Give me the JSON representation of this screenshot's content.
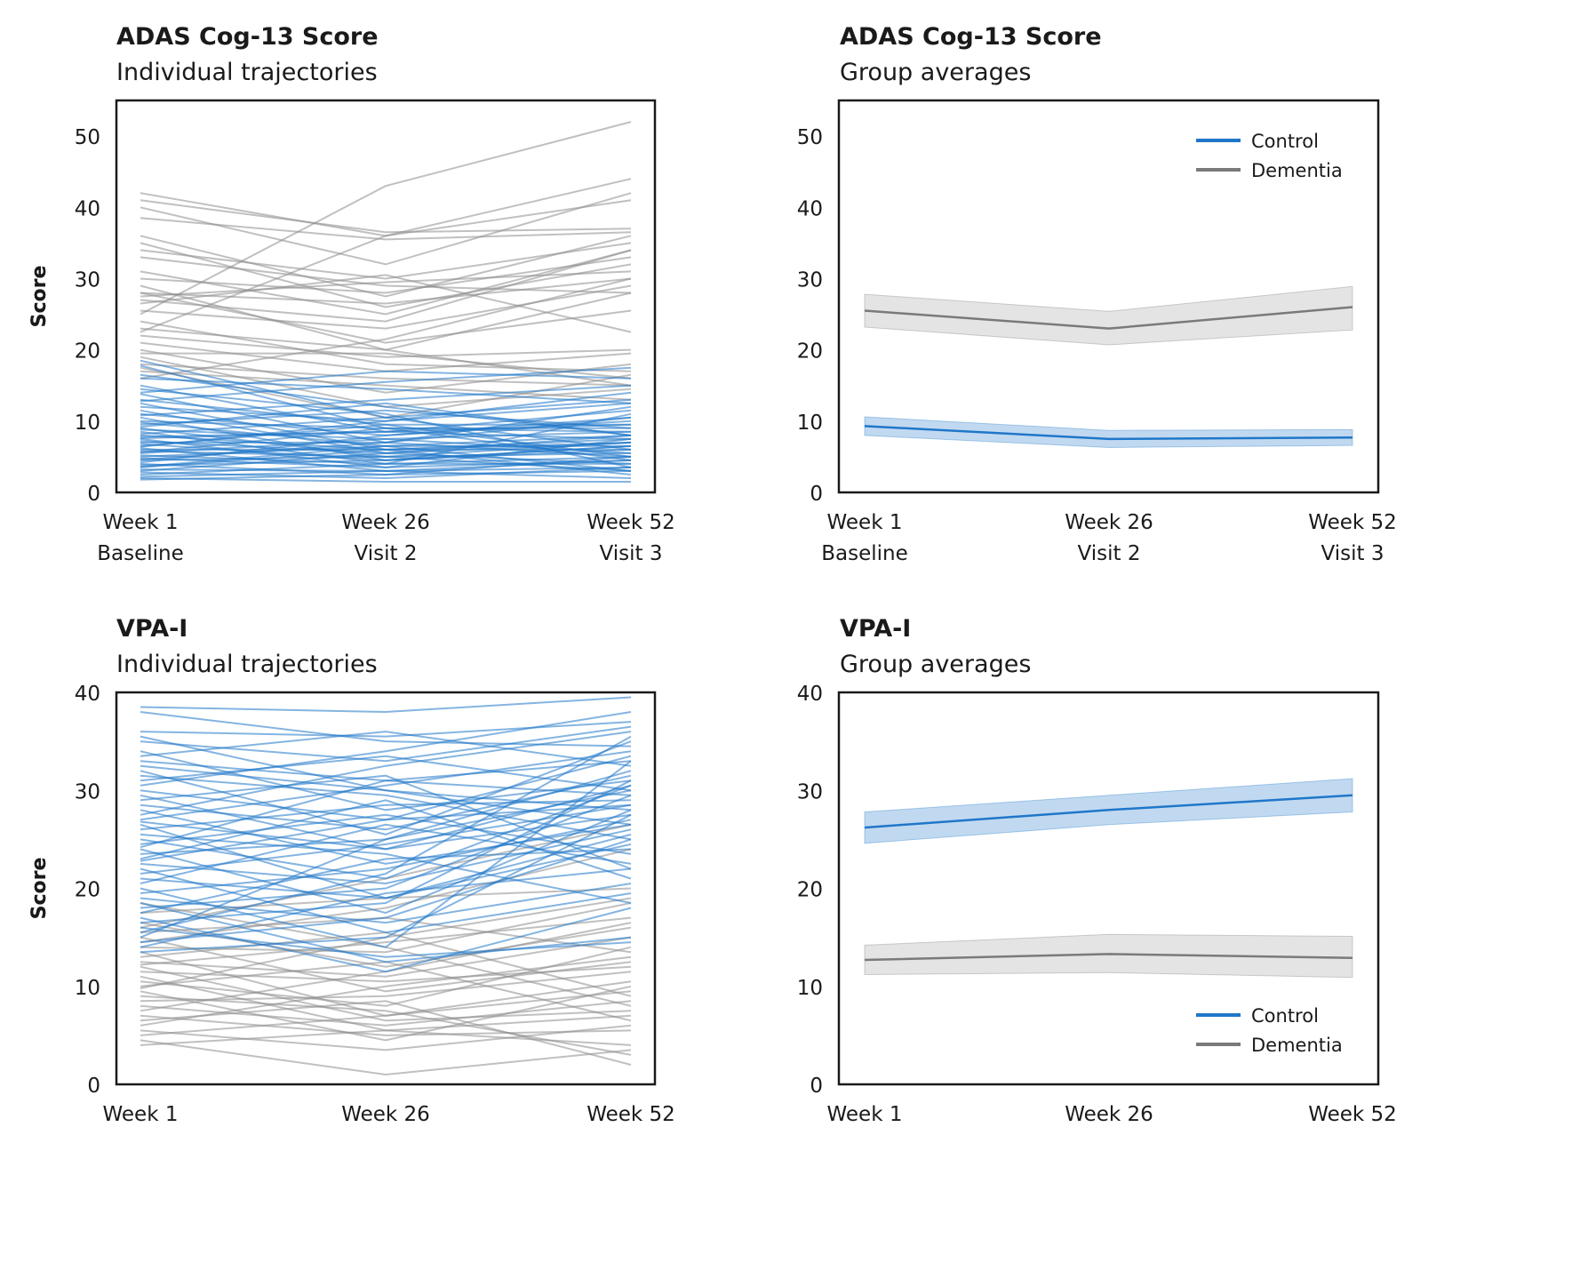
{
  "chart_data": [
    {
      "type": "line",
      "title": "ADAS Cog-13 Score",
      "subtitle": "Individual trajectories",
      "ylabel": "Score",
      "ylim": [
        0,
        55
      ],
      "yticks": [
        0,
        10,
        20,
        30,
        40,
        50
      ],
      "categories": [
        "Week 1",
        "Week 26",
        "Week 52"
      ],
      "category_sublabels": [
        "Baseline",
        "Visit 2",
        "Visit 3"
      ],
      "legend": null,
      "colors": {
        "Control": "#1f77c9",
        "Dementia": "#8c8c8c"
      },
      "groups": [
        {
          "group": "Control",
          "trajectories": [
            [
              18.5,
              10.5,
              6.0
            ],
            [
              17.8,
              9.0,
              4.5
            ],
            [
              16.5,
              12.0,
              8.0
            ],
            [
              15.0,
              8.5,
              9.5
            ],
            [
              14.5,
              11.0,
              3.5
            ],
            [
              13.8,
              7.0,
              12.0
            ],
            [
              13.0,
              9.5,
              5.0
            ],
            [
              12.5,
              6.0,
              7.5
            ],
            [
              12.0,
              10.0,
              14.0
            ],
            [
              11.5,
              5.5,
              4.0
            ],
            [
              11.0,
              8.0,
              10.5
            ],
            [
              10.5,
              4.5,
              6.5
            ],
            [
              10.0,
              9.0,
              8.5
            ],
            [
              9.8,
              6.5,
              3.0
            ],
            [
              9.5,
              11.5,
              9.0
            ],
            [
              9.0,
              5.0,
              7.0
            ],
            [
              8.8,
              7.5,
              5.5
            ],
            [
              8.5,
              4.0,
              11.0
            ],
            [
              8.0,
              6.0,
              6.0
            ],
            [
              7.8,
              8.5,
              7.5
            ],
            [
              7.5,
              3.5,
              4.5
            ],
            [
              7.2,
              5.5,
              8.0
            ],
            [
              7.0,
              7.0,
              5.0
            ],
            [
              6.8,
              4.5,
              6.5
            ],
            [
              6.5,
              9.5,
              9.5
            ],
            [
              6.2,
              3.0,
              3.5
            ],
            [
              6.0,
              6.0,
              7.0
            ],
            [
              5.8,
              5.0,
              5.5
            ],
            [
              5.5,
              7.5,
              8.5
            ],
            [
              5.2,
              4.0,
              4.0
            ],
            [
              5.0,
              6.5,
              6.5
            ],
            [
              4.8,
              3.5,
              7.5
            ],
            [
              4.5,
              5.0,
              3.0
            ],
            [
              4.2,
              8.0,
              10.0
            ],
            [
              4.0,
              2.5,
              5.0
            ],
            [
              3.8,
              4.5,
              6.0
            ],
            [
              3.5,
              6.0,
              2.5
            ],
            [
              3.2,
              3.0,
              4.5
            ],
            [
              3.0,
              5.5,
              7.0
            ],
            [
              2.8,
              2.0,
              3.5
            ],
            [
              2.5,
              4.0,
              5.0
            ],
            [
              2.2,
              3.0,
              2.0
            ],
            [
              2.0,
              1.5,
              1.5
            ],
            [
              1.8,
              2.5,
              3.0
            ],
            [
              14.0,
              17.0,
              16.0
            ],
            [
              16.0,
              14.5,
              12.5
            ],
            [
              12.8,
              15.5,
              17.5
            ],
            [
              10.8,
              13.0,
              15.0
            ],
            [
              9.2,
              12.5,
              8.0
            ],
            [
              8.2,
              10.5,
              13.0
            ],
            [
              7.6,
              8.5,
              11.5
            ],
            [
              6.4,
              10.0,
              12.5
            ],
            [
              5.6,
              9.0,
              9.0
            ],
            [
              4.6,
              7.0,
              10.5
            ],
            [
              3.6,
              6.5,
              8.0
            ]
          ]
        },
        {
          "group": "Dementia",
          "trajectories": [
            [
              42.0,
              36.0,
              44.0
            ],
            [
              41.0,
              36.5,
              37.0
            ],
            [
              40.0,
              32.0,
              42.0
            ],
            [
              36.0,
              27.5,
              36.0
            ],
            [
              35.0,
              26.0,
              32.0
            ],
            [
              34.0,
              30.0,
              35.0
            ],
            [
              31.0,
              25.0,
              34.0
            ],
            [
              30.0,
              28.0,
              33.0
            ],
            [
              29.0,
              20.0,
              28.0
            ],
            [
              28.0,
              26.5,
              30.0
            ],
            [
              28.0,
              21.0,
              25.5
            ],
            [
              27.5,
              29.5,
              31.0
            ],
            [
              26.5,
              30.5,
              22.5
            ],
            [
              25.5,
              23.0,
              29.0
            ],
            [
              25.0,
              43.0,
              52.0
            ],
            [
              24.0,
              18.0,
              17.0
            ],
            [
              23.0,
              20.0,
              15.0
            ],
            [
              22.0,
              19.0,
              20.0
            ],
            [
              21.0,
              17.0,
              19.5
            ],
            [
              20.0,
              14.0,
              18.0
            ],
            [
              19.5,
              19.5,
              16.0
            ],
            [
              19.0,
              12.0,
              14.5
            ],
            [
              18.0,
              16.0,
              15.0
            ],
            [
              17.5,
              10.5,
              16.5
            ],
            [
              17.0,
              15.0,
              13.0
            ],
            [
              22.5,
              36.0,
              41.0
            ],
            [
              27.0,
              24.0,
              34.0
            ],
            [
              33.0,
              29.0,
              28.0
            ],
            [
              38.5,
              35.5,
              36.5
            ],
            [
              16.0,
              21.5,
              30.0
            ]
          ]
        }
      ]
    },
    {
      "type": "line",
      "title": "ADAS Cog-13 Score",
      "subtitle": "Group averages",
      "ylabel": "Score",
      "ylim": [
        0,
        55
      ],
      "yticks": [
        0,
        10,
        20,
        30,
        40,
        50
      ],
      "categories": [
        "Week 1",
        "Week 26",
        "Week 52"
      ],
      "category_sublabels": [
        "Baseline",
        "Visit 2",
        "Visit 3"
      ],
      "legend": "top-right",
      "series": [
        {
          "name": "Control",
          "color": "#1f77c9",
          "values": [
            9.3,
            7.5,
            7.7
          ],
          "ci_low": [
            8.0,
            6.3,
            6.6
          ],
          "ci_high": [
            10.6,
            8.7,
            8.8
          ]
        },
        {
          "name": "Dementia",
          "color": "#7a7a7a",
          "values": [
            25.5,
            23.0,
            26.0
          ],
          "ci_low": [
            23.2,
            20.7,
            22.8
          ],
          "ci_high": [
            27.8,
            25.4,
            28.9
          ]
        }
      ]
    },
    {
      "type": "line",
      "title": "VPA-I",
      "subtitle": "Individual trajectories",
      "ylabel": "Score",
      "ylim": [
        0,
        40
      ],
      "yticks": [
        0,
        10,
        20,
        30,
        40
      ],
      "categories": [
        "Week 1",
        "Week 26",
        "Week 52"
      ],
      "legend": null,
      "colors": {
        "Control": "#1f77c9",
        "Dementia": "#8c8c8c"
      },
      "groups": [
        {
          "group": "Control",
          "trajectories": [
            [
              38.5,
              38.0,
              39.5
            ],
            [
              38.0,
              35.0,
              34.5
            ],
            [
              36.0,
              35.5,
              37.0
            ],
            [
              35.5,
              30.0,
              28.0
            ],
            [
              35.0,
              33.0,
              36.5
            ],
            [
              34.0,
              28.0,
              31.0
            ],
            [
              33.5,
              36.0,
              32.5
            ],
            [
              33.0,
              31.0,
              29.5
            ],
            [
              32.0,
              25.5,
              35.0
            ],
            [
              31.5,
              29.5,
              25.0
            ],
            [
              31.0,
              33.5,
              30.0
            ],
            [
              30.0,
              27.0,
              33.5
            ],
            [
              29.5,
              24.0,
              27.5
            ],
            [
              29.0,
              31.5,
              22.0
            ],
            [
              28.5,
              26.0,
              31.5
            ],
            [
              28.0,
              22.5,
              26.5
            ],
            [
              27.0,
              30.5,
              34.0
            ],
            [
              26.5,
              19.0,
              24.5
            ],
            [
              26.0,
              28.5,
              29.0
            ],
            [
              25.5,
              23.5,
              18.5
            ],
            [
              25.0,
              21.0,
              30.5
            ],
            [
              24.5,
              27.5,
              23.5
            ],
            [
              24.0,
              17.5,
              28.0
            ],
            [
              23.5,
              25.0,
              32.0
            ],
            [
              23.0,
              29.0,
              21.0
            ],
            [
              22.5,
              20.5,
              26.0
            ],
            [
              22.0,
              15.5,
              19.5
            ],
            [
              21.5,
              24.5,
              28.5
            ],
            [
              21.0,
              19.0,
              25.5
            ],
            [
              20.5,
              26.5,
              22.5
            ],
            [
              20.0,
              14.0,
              33.0
            ],
            [
              19.5,
              22.0,
              27.0
            ],
            [
              19.0,
              16.5,
              20.5
            ],
            [
              18.5,
              12.5,
              15.0
            ],
            [
              18.0,
              20.0,
              29.5
            ],
            [
              17.5,
              23.0,
              24.0
            ],
            [
              17.0,
              11.5,
              18.0
            ],
            [
              16.5,
              18.5,
              31.0
            ],
            [
              16.0,
              13.0,
              14.5
            ],
            [
              15.5,
              21.5,
              35.5
            ],
            [
              15.0,
              25.0,
              30.0
            ],
            [
              14.5,
              17.0,
              25.0
            ],
            [
              14.0,
              19.5,
              22.0
            ],
            [
              13.5,
              15.0,
              27.5
            ],
            [
              30.5,
              34.0,
              38.0
            ],
            [
              27.5,
              32.5,
              36.0
            ],
            [
              24.2,
              31.0,
              33.0
            ],
            [
              32.5,
              30.0,
              26.5
            ],
            [
              26.8,
              24.0,
              30.5
            ],
            [
              22.8,
              27.0,
              28.5
            ]
          ]
        },
        {
          "group": "Dementia",
          "trajectories": [
            [
              18.5,
              14.0,
              8.0
            ],
            [
              17.5,
              19.0,
              20.0
            ],
            [
              16.5,
              12.0,
              16.0
            ],
            [
              15.5,
              17.0,
              13.5
            ],
            [
              15.0,
              9.5,
              12.5
            ],
            [
              14.0,
              13.5,
              18.5
            ],
            [
              13.5,
              7.0,
              10.5
            ],
            [
              13.0,
              15.5,
              9.0
            ],
            [
              12.5,
              11.0,
              15.0
            ],
            [
              12.0,
              6.5,
              7.5
            ],
            [
              11.5,
              10.5,
              12.0
            ],
            [
              11.0,
              5.5,
              4.0
            ],
            [
              10.5,
              8.0,
              14.0
            ],
            [
              10.0,
              12.5,
              6.5
            ],
            [
              9.5,
              4.5,
              10.0
            ],
            [
              9.0,
              7.5,
              3.0
            ],
            [
              8.5,
              9.0,
              11.5
            ],
            [
              8.0,
              6.0,
              8.5
            ],
            [
              7.5,
              11.5,
              16.5
            ],
            [
              7.0,
              5.0,
              5.5
            ],
            [
              6.5,
              8.5,
              2.0
            ],
            [
              6.0,
              10.0,
              13.0
            ],
            [
              5.5,
              3.5,
              6.0
            ],
            [
              5.0,
              7.0,
              9.5
            ],
            [
              4.5,
              1.0,
              3.5
            ],
            [
              4.0,
              5.5,
              7.0
            ],
            [
              16.0,
              21.0,
              26.5
            ],
            [
              14.5,
              18.0,
              24.0
            ],
            [
              12.2,
              14.5,
              17.0
            ],
            [
              9.8,
              15.0,
              19.0
            ]
          ]
        }
      ]
    },
    {
      "type": "line",
      "title": "VPA-I",
      "subtitle": "Group averages",
      "ylabel": "Score",
      "ylim": [
        0,
        40
      ],
      "yticks": [
        0,
        10,
        20,
        30,
        40
      ],
      "categories": [
        "Week 1",
        "Week 26",
        "Week 52"
      ],
      "legend": "bottom-right",
      "series": [
        {
          "name": "Control",
          "color": "#1f77c9",
          "values": [
            26.2,
            28.0,
            29.5
          ],
          "ci_low": [
            24.6,
            26.5,
            27.8
          ],
          "ci_high": [
            27.8,
            29.5,
            31.2
          ]
        },
        {
          "name": "Dementia",
          "color": "#7a7a7a",
          "values": [
            12.7,
            13.3,
            12.9
          ],
          "ci_low": [
            11.2,
            11.4,
            10.9
          ],
          "ci_high": [
            14.2,
            15.3,
            15.1
          ]
        }
      ]
    }
  ]
}
